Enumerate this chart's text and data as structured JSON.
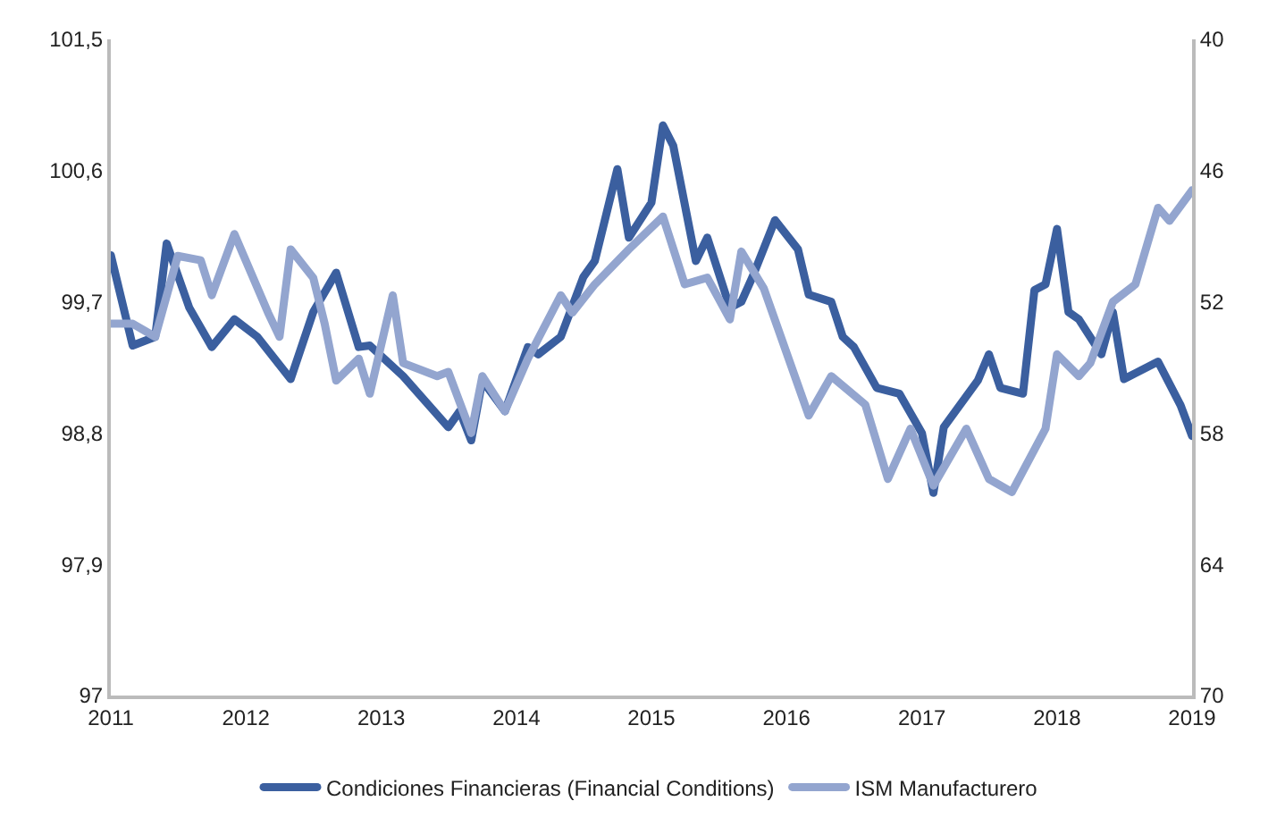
{
  "chart_data": {
    "type": "line",
    "xlim": [
      "2011",
      "2019"
    ],
    "xticks": [
      "2011",
      "2012",
      "2013",
      "2014",
      "2015",
      "2016",
      "2017",
      "2018",
      "2019"
    ],
    "ylim": [
      97,
      101.5
    ],
    "yticks": [
      97,
      {
        "value": 97.9,
        "label": "97,9"
      },
      {
        "value": 98.8,
        "label": "98,8"
      },
      {
        "value": 99.7,
        "label": "99,7"
      },
      {
        "value": 100.6,
        "label": "100,6"
      },
      {
        "value": 101.5,
        "label": "101,5"
      }
    ],
    "y2lim": [
      70,
      40
    ],
    "y2ticks": [
      70,
      64,
      58,
      52,
      46,
      40
    ],
    "grid": false,
    "legend": "bottom",
    "marker": "none",
    "line_style": "solid",
    "series": [
      {
        "name": "Condiciones Financieras (Financial Conditions)",
        "color": "#3b5f9f",
        "x": [
          "2011-01",
          "2011-03",
          "2011-05",
          "2011-06",
          "2011-08",
          "2011-10",
          "2011-12",
          "2012-02",
          "2012-05",
          "2012-07",
          "2012-09",
          "2012-11",
          "2012-12",
          "2013-03",
          "2013-07",
          "2013-08",
          "2013-09",
          "2013-10",
          "2013-12",
          "2014-02",
          "2014-03",
          "2014-05",
          "2014-07",
          "2014-08",
          "2014-10",
          "2014-11",
          "2015-01",
          "2015-02",
          "2015-03",
          "2015-05",
          "2015-06",
          "2015-08",
          "2015-09",
          "2015-10",
          "2015-12",
          "2016-02",
          "2016-03",
          "2016-05",
          "2016-06",
          "2016-07",
          "2016-09",
          "2016-11",
          "2017-01",
          "2017-02",
          "2017-03",
          "2017-06",
          "2017-07",
          "2017-08",
          "2017-10",
          "2017-11",
          "2017-12",
          "2018-01",
          "2018-02",
          "2018-03",
          "2018-05",
          "2018-06",
          "2018-07",
          "2018-10",
          "2018-12",
          "2019-01"
        ],
        "values": [
          100.02,
          99.4,
          99.46,
          100.1,
          99.66,
          99.39,
          99.58,
          99.46,
          99.17,
          99.63,
          99.9,
          99.39,
          99.4,
          99.19,
          98.84,
          98.95,
          98.75,
          99.16,
          98.95,
          99.39,
          99.34,
          99.46,
          99.87,
          99.98,
          100.61,
          100.14,
          100.38,
          100.91,
          100.77,
          99.98,
          100.14,
          99.66,
          99.7,
          99.87,
          100.26,
          100.06,
          99.75,
          99.7,
          99.46,
          99.39,
          99.11,
          99.07,
          98.8,
          98.39,
          98.84,
          99.16,
          99.34,
          99.11,
          99.07,
          99.78,
          99.82,
          100.2,
          99.63,
          99.58,
          99.34,
          99.63,
          99.17,
          99.29,
          98.99,
          98.78
        ]
      },
      {
        "name": "ISM Manufacturero",
        "color": "#93a5cf",
        "axis": "y2",
        "x": [
          "2011-01",
          "2011-03",
          "2011-05",
          "2011-07",
          "2011-09",
          "2011-10",
          "2011-12",
          "2012-03",
          "2012-04",
          "2012-05",
          "2012-07",
          "2012-08",
          "2012-09",
          "2012-11",
          "2012-12",
          "2013-02",
          "2013-03",
          "2013-06",
          "2013-07",
          "2013-09",
          "2013-10",
          "2013-12",
          "2014-02",
          "2014-05",
          "2014-06",
          "2014-08",
          "2014-11",
          "2015-02",
          "2015-04",
          "2015-06",
          "2015-08",
          "2015-09",
          "2015-11",
          "2016-03",
          "2016-05",
          "2016-08",
          "2016-10",
          "2016-12",
          "2017-02",
          "2017-05",
          "2017-07",
          "2017-09",
          "2017-12",
          "2018-01",
          "2018-03",
          "2018-04",
          "2018-06",
          "2018-08",
          "2018-10",
          "2018-11",
          "2019-01"
        ],
        "values": [
          53.0,
          53.0,
          53.6,
          49.9,
          50.1,
          51.7,
          48.9,
          52.5,
          53.6,
          49.6,
          50.9,
          53.0,
          55.6,
          54.6,
          56.2,
          51.7,
          54.8,
          55.4,
          55.2,
          58.0,
          55.4,
          57.0,
          54.6,
          51.7,
          52.5,
          51.2,
          49.6,
          48.1,
          51.2,
          50.9,
          52.8,
          49.7,
          51.4,
          57.2,
          55.4,
          56.7,
          60.1,
          57.8,
          60.4,
          57.8,
          60.1,
          60.7,
          57.8,
          54.4,
          55.4,
          54.8,
          52.0,
          51.2,
          47.7,
          48.3,
          46.9
        ]
      }
    ]
  }
}
